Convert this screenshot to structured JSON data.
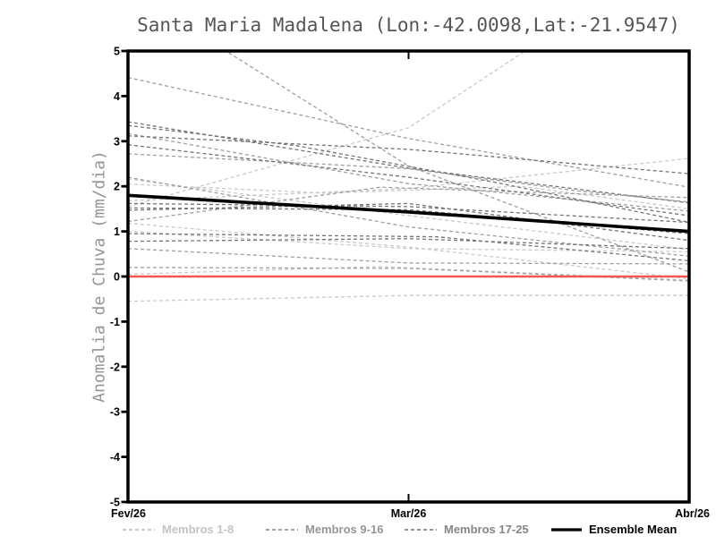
{
  "chart_data": {
    "type": "line",
    "title": "Santa Maria Madalena (Lon:-42.0098,Lat:-21.9547)",
    "ylabel": "Anomalia de Chuva (mm/dia)",
    "xlabel": "",
    "ylim": [
      -5,
      5
    ],
    "yticks": [
      5,
      4,
      3,
      2,
      1,
      0,
      -1,
      -2,
      -3,
      -4,
      -5
    ],
    "x_ticks": [
      {
        "frac": 0,
        "label": "Fev/26"
      },
      {
        "frac": 0.5,
        "label": "Mar/26"
      },
      {
        "frac": 1,
        "label": "Abr/26"
      }
    ],
    "grid": false,
    "legend_position": "bottom",
    "zero_line": {
      "value": 0,
      "color": "#f2564e"
    },
    "groups": [
      {
        "name": "Membros 1-8",
        "color": "#c9c9c9",
        "style": "dashed",
        "members": [
          {
            "points": [
              [
                0,
                1.55
              ],
              [
                0.5,
                3.3
              ],
              [
                0.72,
                5.1
              ],
              [
                1,
                7.3
              ]
            ]
          },
          {
            "points": [
              [
                0,
                2.16
              ],
              [
                0.5,
                1.35
              ],
              [
                1,
                0.6
              ]
            ]
          },
          {
            "points": [
              [
                0,
                0.05
              ],
              [
                0.45,
                0.22
              ],
              [
                1,
                -0.08
              ]
            ]
          },
          {
            "points": [
              [
                0,
                -0.55
              ],
              [
                0.5,
                -0.42
              ],
              [
                1,
                -0.42
              ]
            ]
          },
          {
            "points": [
              [
                0,
                1.68
              ],
              [
                0.5,
                1.95
              ],
              [
                1,
                2.62
              ]
            ]
          },
          {
            "points": [
              [
                0,
                1.18
              ],
              [
                0.5,
                0.65
              ],
              [
                1,
                -0.05
              ]
            ]
          },
          {
            "points": [
              [
                0,
                1.0
              ],
              [
                0.5,
                0.62
              ],
              [
                1,
                0.55
              ]
            ]
          },
          {
            "points": [
              [
                0,
                2.05
              ],
              [
                0.35,
                1.85
              ],
              [
                0.7,
                2.0
              ],
              [
                1,
                1.5
              ]
            ]
          }
        ]
      },
      {
        "name": "Membros 9-16",
        "color": "#9e9e9e",
        "style": "dashed",
        "members": [
          {
            "points": [
              [
                0,
                4.41
              ],
              [
                0.5,
                3.06
              ],
              [
                1,
                1.98
              ]
            ]
          },
          {
            "points": [
              [
                0,
                6.37
              ],
              [
                0.5,
                2.45
              ],
              [
                1,
                0.1
              ]
            ]
          },
          {
            "points": [
              [
                0,
                3.17
              ],
              [
                0.5,
                2.06
              ],
              [
                1,
                1.45
              ]
            ]
          },
          {
            "points": [
              [
                0,
                2.72
              ],
              [
                0.5,
                2.39
              ],
              [
                0.8,
                1.9
              ],
              [
                1,
                1.65
              ]
            ]
          },
          {
            "points": [
              [
                0,
                2.2
              ],
              [
                0.5,
                1.1
              ],
              [
                1,
                0.45
              ]
            ]
          },
          {
            "points": [
              [
                0,
                1.22
              ],
              [
                0.45,
                1.98
              ],
              [
                1,
                1.75
              ]
            ]
          },
          {
            "points": [
              [
                0,
                0.62
              ],
              [
                0.5,
                0.3
              ],
              [
                1,
                0.28
              ]
            ]
          },
          {
            "points": [
              [
                0,
                0.2
              ],
              [
                0.5,
                0.18
              ],
              [
                1,
                -0.1
              ]
            ]
          }
        ]
      },
      {
        "name": "Membros 17-25",
        "color": "#737373",
        "style": "dashed",
        "members": [
          {
            "points": [
              [
                0,
                3.43
              ],
              [
                0.5,
                2.4
              ],
              [
                1,
                1.63
              ]
            ]
          },
          {
            "points": [
              [
                0,
                3.35
              ],
              [
                0.3,
                2.9
              ],
              [
                0.65,
                2.1
              ],
              [
                1,
                1.2
              ]
            ]
          },
          {
            "points": [
              [
                0,
                3.12
              ],
              [
                0.5,
                2.82
              ],
              [
                1,
                2.28
              ]
            ]
          },
          {
            "points": [
              [
                0,
                2.92
              ],
              [
                0.5,
                2.2
              ],
              [
                1,
                1.35
              ]
            ]
          },
          {
            "points": [
              [
                0,
                1.62
              ],
              [
                0.5,
                1.55
              ],
              [
                1,
                1.2
              ]
            ]
          },
          {
            "points": [
              [
                0,
                1.52
              ],
              [
                0.5,
                1.48
              ],
              [
                1,
                0.95
              ]
            ]
          },
          {
            "points": [
              [
                0,
                1.47
              ],
              [
                0.5,
                1.62
              ],
              [
                1,
                0.8
              ]
            ]
          },
          {
            "points": [
              [
                0,
                0.95
              ],
              [
                0.55,
                0.88
              ],
              [
                1,
                0.35
              ]
            ]
          },
          {
            "points": [
              [
                0,
                0.78
              ],
              [
                0.5,
                0.84
              ],
              [
                1,
                0.62
              ]
            ]
          }
        ]
      }
    ],
    "ensemble_mean": {
      "name": "Ensemble Mean",
      "color": "#000000",
      "style": "solid",
      "points": [
        [
          0,
          1.8
        ],
        [
          0.5,
          1.43
        ],
        [
          1,
          1.0
        ]
      ]
    }
  },
  "legend": {
    "items": [
      {
        "label": "Membros 1-8",
        "color": "#c4c4c4",
        "style": "dashed"
      },
      {
        "label": "Membros 9-16",
        "color": "#969696",
        "style": "dashed"
      },
      {
        "label": "Membros 17-25",
        "color": "#858585",
        "style": "dashed"
      },
      {
        "label": "Ensemble Mean",
        "color": "#000000",
        "style": "solid"
      }
    ]
  }
}
